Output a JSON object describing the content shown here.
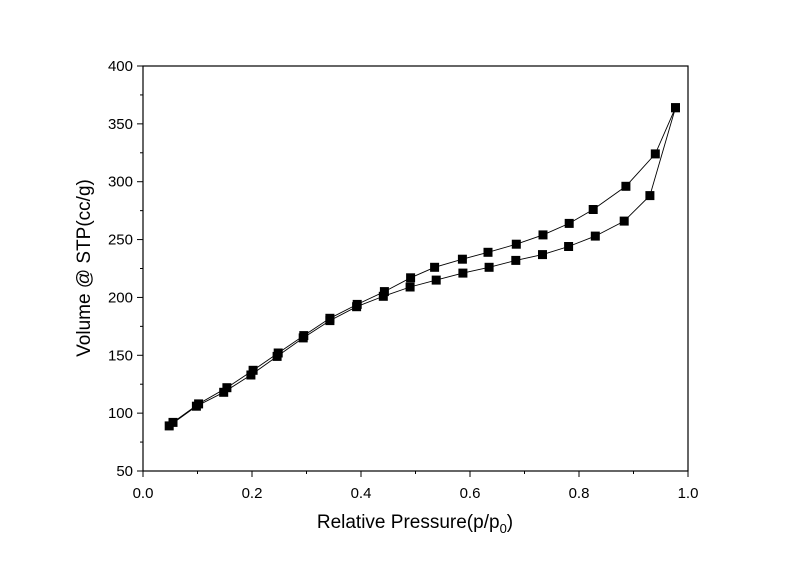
{
  "chart_data": {
    "type": "line",
    "title": "",
    "xlabel": "Relative Pressure(p/p",
    "xlabel_subscript": "0",
    "xlabel_suffix": ")",
    "ylabel": "Volume @ STP(cc/g)",
    "xlim": [
      0.0,
      1.0
    ],
    "ylim": [
      50,
      400
    ],
    "x_ticks": [
      "0.0",
      "0.2",
      "0.4",
      "0.6",
      "0.8",
      "1.0"
    ],
    "y_ticks": [
      "50",
      "100",
      "150",
      "200",
      "250",
      "300",
      "350",
      "400"
    ],
    "grid": false,
    "legend": "none",
    "marker": "filled-square",
    "line_color": "#000000",
    "series": [
      {
        "x": [
          0.048,
          0.098,
          0.148,
          0.198,
          0.246,
          0.294,
          0.343,
          0.392,
          0.441,
          0.49,
          0.538,
          0.587,
          0.635,
          0.684,
          0.733,
          0.781,
          0.83,
          0.883,
          0.93,
          0.977
        ],
        "values": [
          89,
          106,
          118,
          133,
          149,
          165,
          180,
          192,
          201,
          209,
          215,
          221,
          226,
          232,
          237,
          244,
          253,
          266,
          288,
          364
        ]
      },
      {
        "x": [
          0.977,
          0.94,
          0.886,
          0.826,
          0.782,
          0.734,
          0.685,
          0.633,
          0.586,
          0.535,
          0.491,
          0.443,
          0.393,
          0.343,
          0.295,
          0.248,
          0.202,
          0.154,
          0.102,
          0.055
        ],
        "values": [
          364,
          324,
          296,
          276,
          264,
          254,
          246,
          239,
          233,
          226,
          217,
          205,
          194,
          182,
          167,
          152,
          137,
          122,
          108,
          92
        ]
      }
    ]
  }
}
